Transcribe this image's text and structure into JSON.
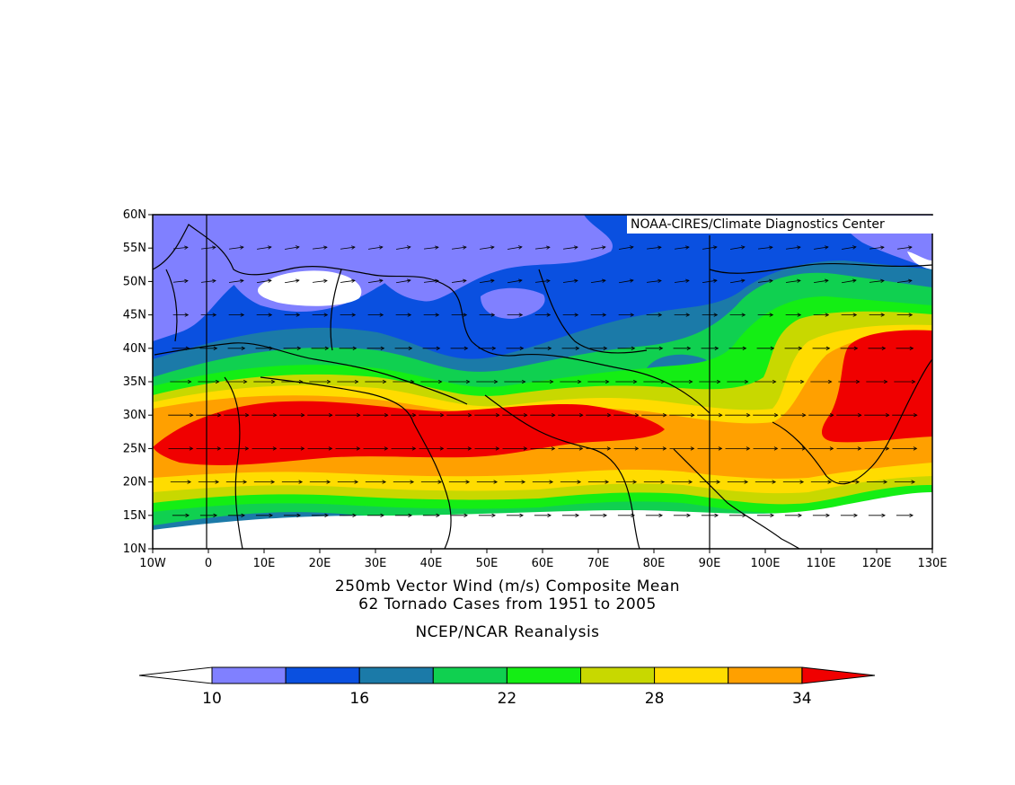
{
  "map": {
    "title_line1": "250mb Vector Wind (m/s) Composite Mean",
    "title_line2": "62 Tornado Cases from 1951 to 2005",
    "subtitle": "NCEP/NCAR Reanalysis",
    "credit": "NOAA-CIRES/Climate Diagnostics Center",
    "lon_labels": [
      "10W",
      "0",
      "10E",
      "20E",
      "30E",
      "40E",
      "50E",
      "60E",
      "70E",
      "80E",
      "90E",
      "100E",
      "110E",
      "120E",
      "130E"
    ],
    "lat_labels": [
      "10N",
      "15N",
      "20N",
      "25N",
      "30N",
      "35N",
      "40N",
      "45N",
      "50N",
      "55N",
      "60N"
    ],
    "extent": {
      "lon_min": -10,
      "lon_max": 130,
      "lat_min": 10,
      "lat_max": 60
    },
    "vector_spacing_deg": 5
  },
  "colorbar": {
    "labels": [
      "10",
      "16",
      "22",
      "28",
      "34"
    ],
    "levels": [
      10,
      13,
      16,
      19,
      22,
      25,
      28,
      31,
      34
    ],
    "colors": [
      "#ffffff",
      "#8080ff",
      "#0a50e0",
      "#1b7aa8",
      "#10d050",
      "#14ee14",
      "#c8d800",
      "#ffdc00",
      "#ffa000",
      "#f00000"
    ]
  },
  "chart_data": {
    "type": "filled-contour-map with vector wind",
    "title": "250mb Vector Wind (m/s) Composite Mean",
    "subtitle": "62 Tornado Cases from 1951 to 2005",
    "source": "NCEP/NCAR Reanalysis",
    "units": "m/s",
    "contour_levels": [
      10,
      13,
      16,
      19,
      22,
      25,
      28,
      31,
      34
    ],
    "xlim": [
      -10,
      130
    ],
    "ylim": [
      10,
      60
    ],
    "jet_core_regions": [
      {
        "lon_range": [
          -10,
          80
        ],
        "lat_center": 27,
        "speed_min": 34
      },
      {
        "lon_range": [
          107,
          130
        ],
        "lat_center": 33,
        "speed_min": 34
      }
    ]
  }
}
